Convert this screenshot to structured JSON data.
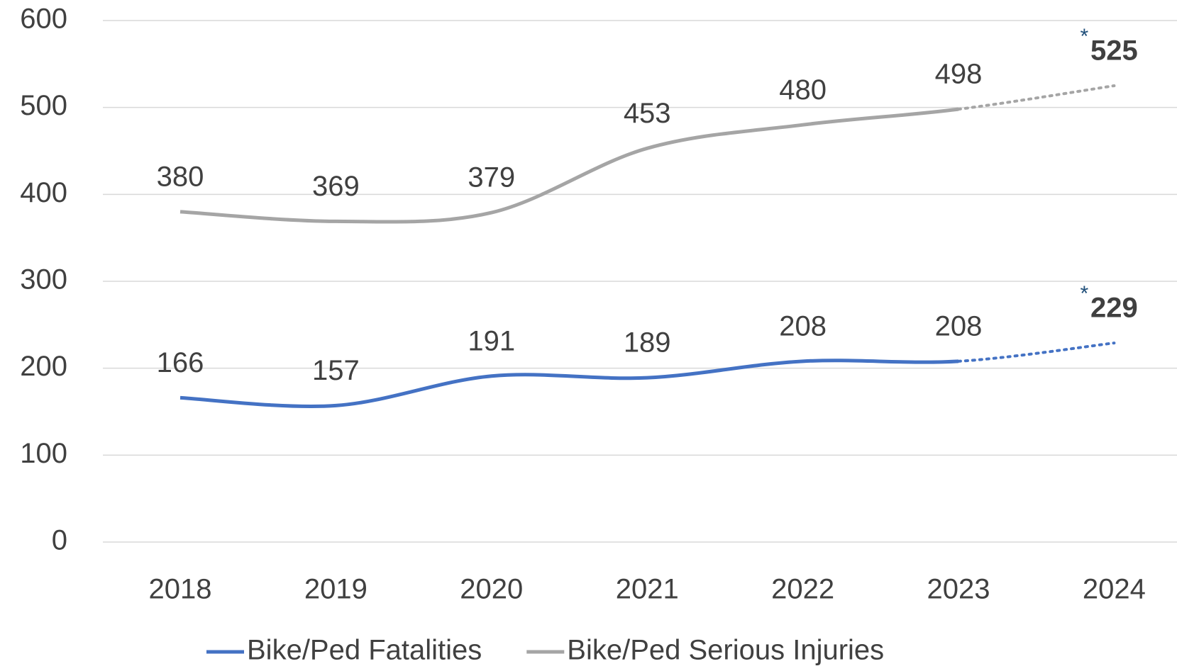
{
  "chart_data": {
    "type": "line",
    "categories": [
      "2018",
      "2019",
      "2020",
      "2021",
      "2022",
      "2023",
      "2024"
    ],
    "series": [
      {
        "name": "Bike/Ped Fatalities",
        "color": "#4472c4",
        "values": [
          166,
          157,
          191,
          189,
          208,
          208,
          229
        ],
        "note": "*"
      },
      {
        "name": "Bike/Ped Serious Injuries",
        "color": "#a5a5a5",
        "values": [
          380,
          369,
          379,
          453,
          480,
          498,
          525
        ],
        "note": "*"
      }
    ],
    "dotted_after": "2023",
    "ylim": [
      0,
      600
    ],
    "yticks": [
      0,
      100,
      200,
      300,
      400,
      500,
      600
    ],
    "grid": true,
    "legend": "bottom",
    "data_labels": true
  }
}
